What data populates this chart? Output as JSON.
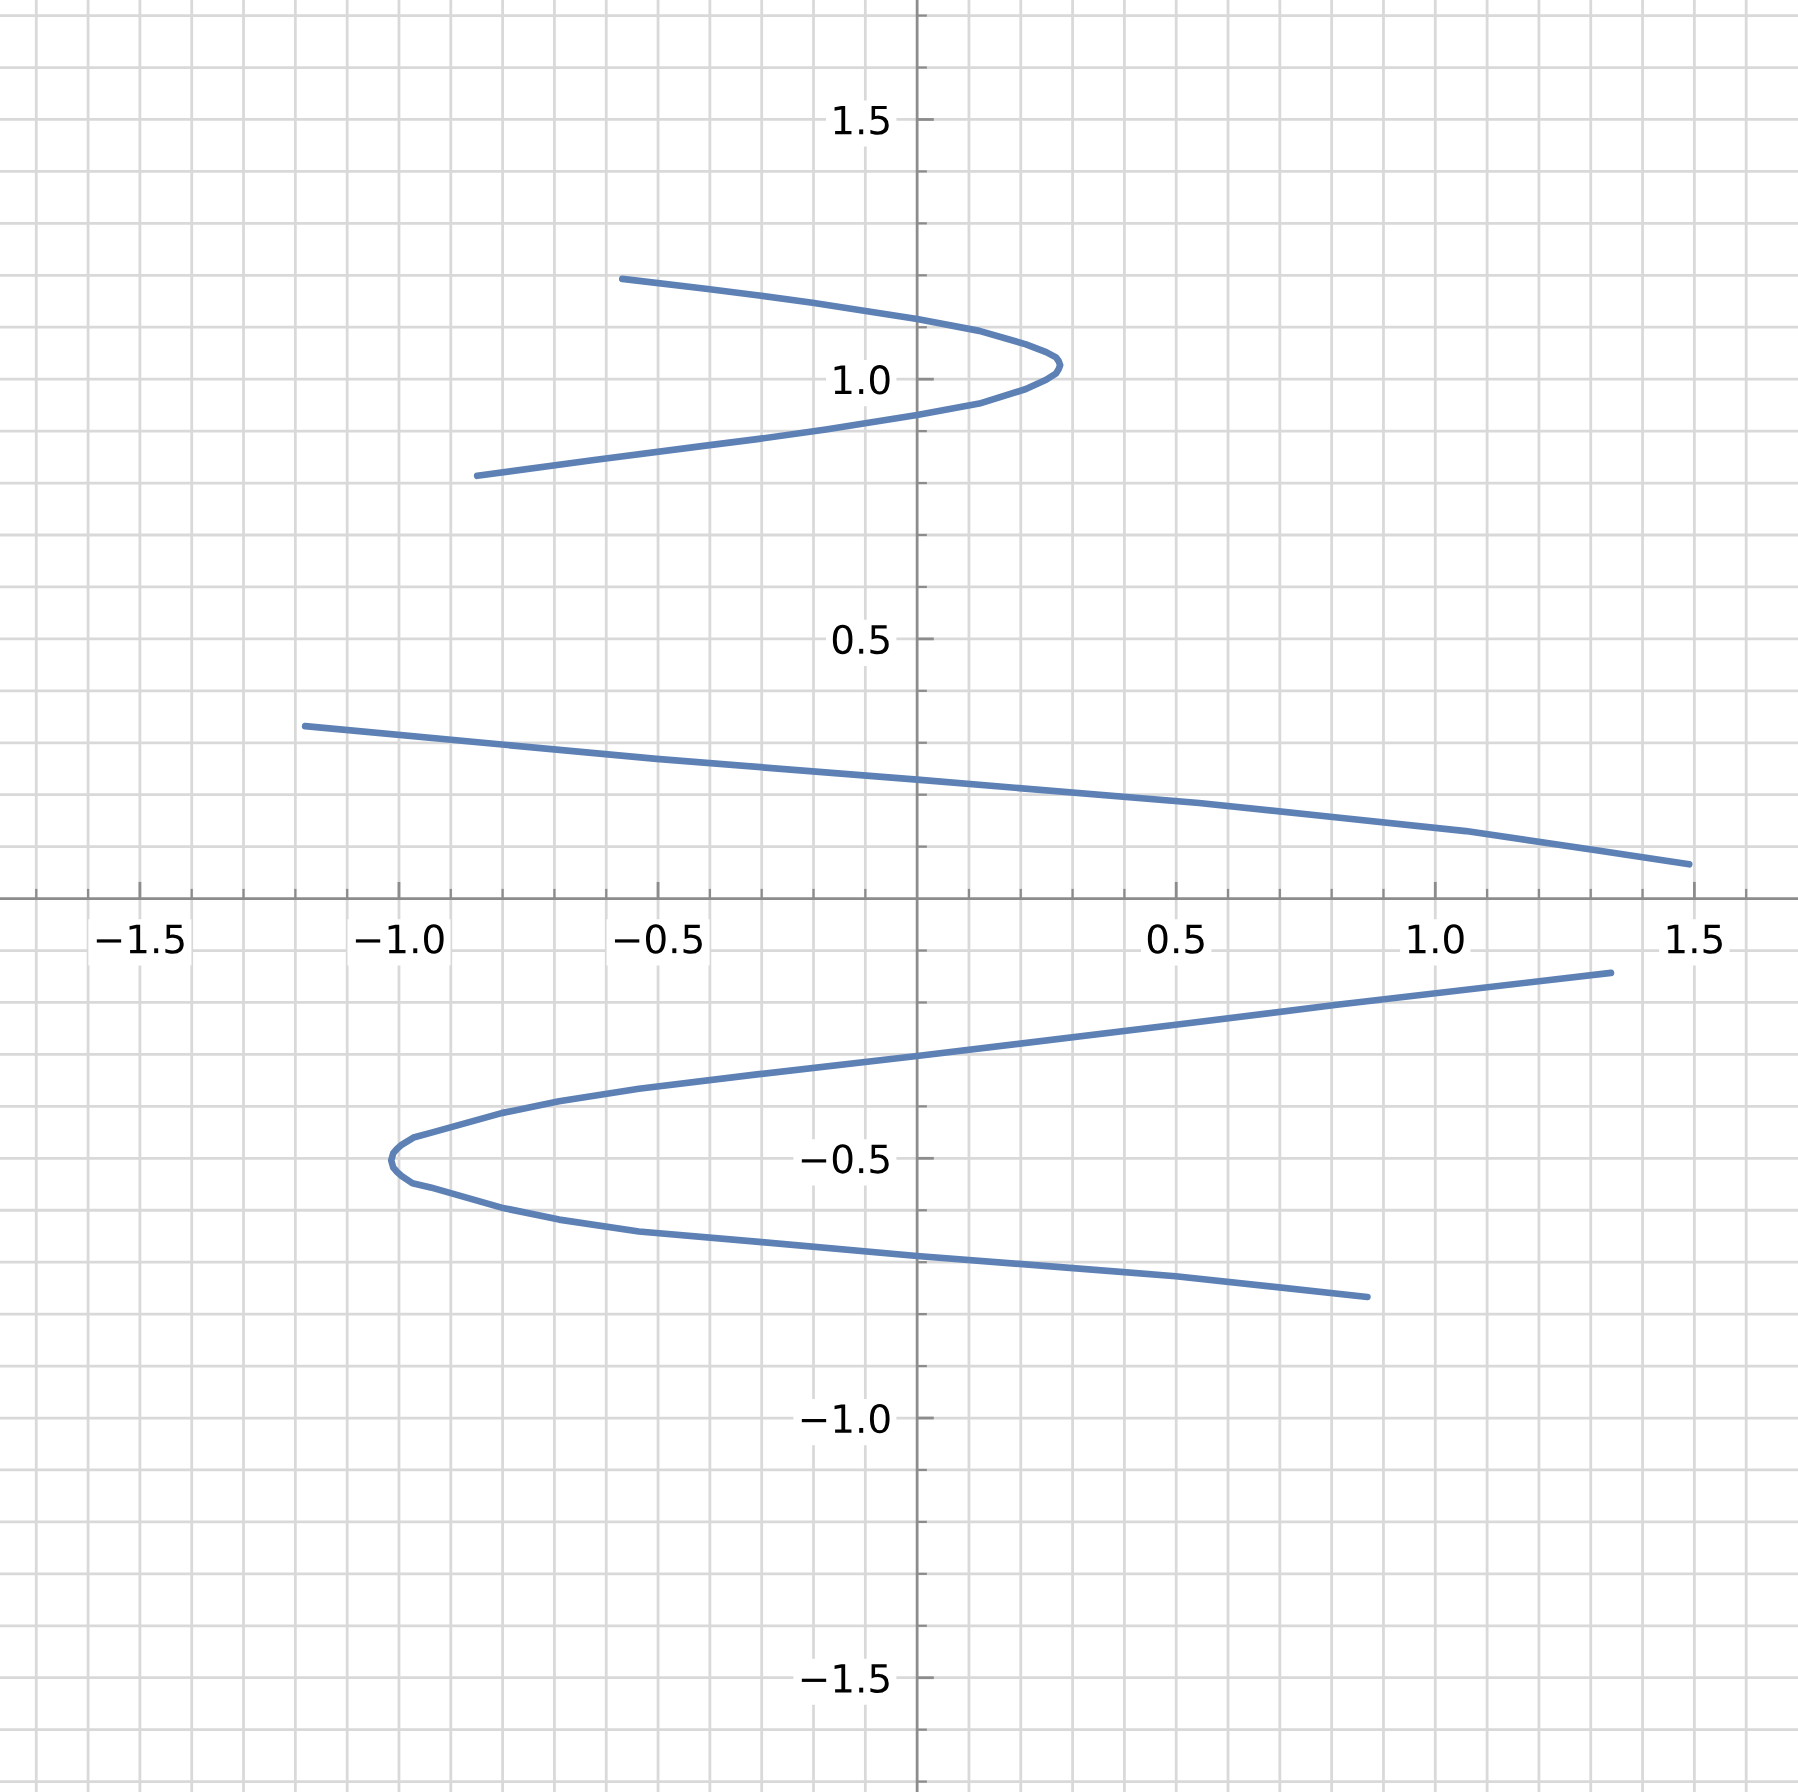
{
  "chart_data": {
    "type": "line",
    "series": [
      {
        "color": "#5e81b5",
        "x": [
          -0.569,
          -0.408,
          -0.305,
          -0.202,
          0.0,
          0.12,
          0.21,
          0.249,
          0.268,
          0.273,
          0.276,
          0.273,
          0.268,
          0.249,
          0.21,
          0.12,
          0.0,
          -0.176,
          -0.305,
          -0.408,
          -0.627,
          -0.849
        ],
        "values": [
          1.193,
          1.174,
          1.161,
          1.147,
          1.116,
          1.093,
          1.067,
          1.052,
          1.042,
          1.035,
          1.027,
          1.019,
          1.011,
          0.999,
          0.981,
          0.953,
          0.931,
          0.903,
          0.885,
          0.872,
          0.844,
          0.814
        ]
      },
      {
        "color": "#5e81b5",
        "x": [
          -1.181,
          -0.503,
          0.0,
          0.544,
          0.802,
          1.059,
          1.317,
          1.49
        ],
        "values": [
          0.332,
          0.269,
          0.229,
          0.184,
          0.157,
          0.13,
          0.092,
          0.066
        ]
      },
      {
        "color": "#5e81b5",
        "x": [
          1.339,
          0.814,
          0.499,
          0.0,
          -0.305,
          -0.537,
          -0.691,
          -0.802,
          -0.939,
          -0.972,
          -0.995,
          -1.004,
          -1.011,
          -1.015,
          -1.011,
          -1.004,
          -0.995,
          -0.974,
          -0.939,
          -0.802,
          -0.691,
          -0.537,
          -0.305,
          0.0,
          0.499,
          0.869
        ],
        "values": [
          -0.143,
          -0.204,
          -0.243,
          -0.303,
          -0.338,
          -0.366,
          -0.39,
          -0.413,
          -0.451,
          -0.46,
          -0.474,
          -0.482,
          -0.49,
          -0.504,
          -0.518,
          -0.526,
          -0.534,
          -0.548,
          -0.556,
          -0.595,
          -0.618,
          -0.641,
          -0.661,
          -0.688,
          -0.727,
          -0.767
        ]
      }
    ],
    "xlim": [
      -1.77,
      1.7
    ],
    "ylim": [
      -1.72,
      1.73
    ],
    "xticks": [
      {
        "value": -1.7,
        "label": null
      },
      {
        "value": -1.6,
        "label": null
      },
      {
        "value": -1.5,
        "label": "−1.5"
      },
      {
        "value": -1.4,
        "label": null
      },
      {
        "value": -1.3,
        "label": null
      },
      {
        "value": -1.2,
        "label": null
      },
      {
        "value": -1.1,
        "label": null
      },
      {
        "value": -1.0,
        "label": "−1.0"
      },
      {
        "value": -0.9,
        "label": null
      },
      {
        "value": -0.8,
        "label": null
      },
      {
        "value": -0.7,
        "label": null
      },
      {
        "value": -0.6,
        "label": null
      },
      {
        "value": -0.5,
        "label": "−0.5"
      },
      {
        "value": -0.4,
        "label": null
      },
      {
        "value": -0.3,
        "label": null
      },
      {
        "value": -0.2,
        "label": null
      },
      {
        "value": -0.1,
        "label": null
      },
      {
        "value": 0.1,
        "label": null
      },
      {
        "value": 0.2,
        "label": null
      },
      {
        "value": 0.3,
        "label": null
      },
      {
        "value": 0.4,
        "label": null
      },
      0.5,
      {
        "value": 0.6,
        "label": null
      },
      {
        "value": 0.7,
        "label": null
      },
      {
        "value": 0.8,
        "label": null
      },
      {
        "value": 0.9,
        "label": null
      },
      {
        "value": 1.0,
        "label": "1.0"
      },
      {
        "value": 1.1,
        "label": null
      },
      {
        "value": 1.2,
        "label": null
      },
      {
        "value": 1.3,
        "label": null
      },
      {
        "value": 1.4,
        "label": null
      },
      1.5,
      {
        "value": 1.6,
        "label": null
      }
    ],
    "yticks": [
      {
        "value": -1.7,
        "label": null
      },
      {
        "value": -1.6,
        "label": null
      },
      {
        "value": -1.5,
        "label": "−1.5"
      },
      {
        "value": -1.4,
        "label": null
      },
      {
        "value": -1.3,
        "label": null
      },
      {
        "value": -1.2,
        "label": null
      },
      {
        "value": -1.1,
        "label": null
      },
      {
        "value": -1.0,
        "label": "−1.0"
      },
      {
        "value": -0.9,
        "label": null
      },
      {
        "value": -0.8,
        "label": null
      },
      {
        "value": -0.7,
        "label": null
      },
      {
        "value": -0.6,
        "label": null
      },
      {
        "value": -0.5,
        "label": "−0.5"
      },
      {
        "value": -0.4,
        "label": null
      },
      {
        "value": -0.3,
        "label": null
      },
      {
        "value": -0.2,
        "label": null
      },
      {
        "value": -0.1,
        "label": null
      },
      {
        "value": 0.1,
        "label": null
      },
      {
        "value": 0.2,
        "label": null
      },
      {
        "value": 0.3,
        "label": null
      },
      {
        "value": 0.4,
        "label": null
      },
      0.5,
      {
        "value": 0.6,
        "label": null
      },
      {
        "value": 0.7,
        "label": null
      },
      {
        "value": 0.8,
        "label": null
      },
      {
        "value": 0.9,
        "label": null
      },
      {
        "value": 1.0,
        "label": "1.0"
      },
      {
        "value": 1.1,
        "label": null
      },
      {
        "value": 1.2,
        "label": null
      },
      {
        "value": 1.3,
        "label": null
      },
      {
        "value": 1.4,
        "label": null
      },
      1.5,
      {
        "value": 1.6,
        "label": null
      },
      {
        "value": 1.7,
        "label": null
      }
    ],
    "grid": true
  }
}
